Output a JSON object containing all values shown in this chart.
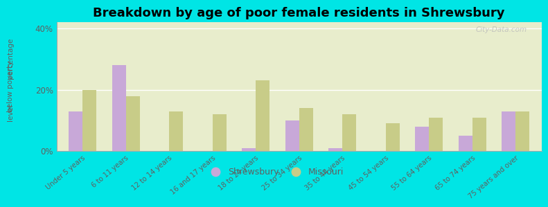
{
  "title": "Breakdown by age of poor female residents in Shrewsbury",
  "categories": [
    "Under 5 years",
    "6 to 11 years",
    "12 to 14 years",
    "16 and 17 years",
    "18 to 24 years",
    "25 to 34 years",
    "35 to 44 years",
    "45 to 54 years",
    "55 to 64 years",
    "65 to 74 years",
    "75 years and over"
  ],
  "shrewsbury": [
    13,
    28,
    0,
    0,
    1,
    10,
    1,
    0,
    8,
    5,
    13
  ],
  "missouri": [
    20,
    18,
    13,
    12,
    23,
    14,
    12,
    9,
    11,
    11,
    13
  ],
  "shrewsbury_color": "#c8a8d8",
  "missouri_color": "#c8cc88",
  "background_outer": "#00e5e5",
  "background_inner_top": "#e8edcc",
  "background_inner_bottom": "#f5f8e8",
  "ylabel_line1": "percentage",
  "ylabel_line2": "below poverty",
  "ylabel_line3": "level",
  "ylim": [
    0,
    42
  ],
  "yticks": [
    0,
    20,
    40
  ],
  "ytick_labels": [
    "0%",
    "20%",
    "40%"
  ],
  "title_fontsize": 13,
  "watermark": "City-Data.com",
  "tick_color": "#606060",
  "label_color": "#606060"
}
